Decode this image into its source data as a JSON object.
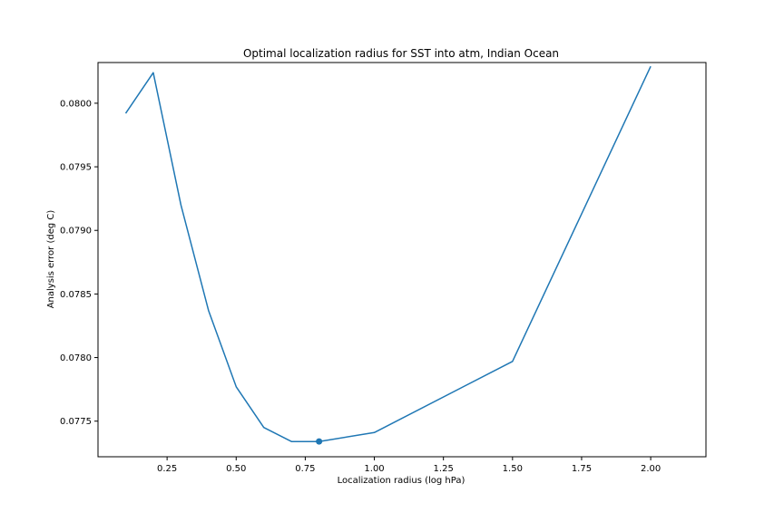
{
  "chart_data": {
    "type": "line",
    "title": "Optimal localization radius for SST into atm, Indian Ocean",
    "xlabel": "Localization radius (log hPa)",
    "ylabel": "Analysis error (deg C)",
    "xlim": [
      0.0,
      2.2
    ],
    "ylim": [
      0.07722,
      0.08032
    ],
    "xticks": [
      "0.25",
      "0.50",
      "0.75",
      "1.00",
      "1.25",
      "1.50",
      "1.75",
      "2.00"
    ],
    "yticks": [
      "0.0775",
      "0.0780",
      "0.0785",
      "0.0790",
      "0.0795",
      "0.0800"
    ],
    "grid": false,
    "color": "#1f77b4",
    "series": [
      {
        "x": [
          0.1,
          0.2,
          0.3,
          0.4,
          0.5,
          0.6,
          0.7,
          0.8,
          1.0,
          1.5,
          2.0
        ],
        "y": [
          0.07992,
          0.08024,
          0.0792,
          0.07837,
          0.07777,
          0.07745,
          0.07734,
          0.07734,
          0.07741,
          0.07797,
          0.08029
        ]
      }
    ],
    "highlight_point": {
      "x": 0.8,
      "y": 0.07734
    }
  }
}
